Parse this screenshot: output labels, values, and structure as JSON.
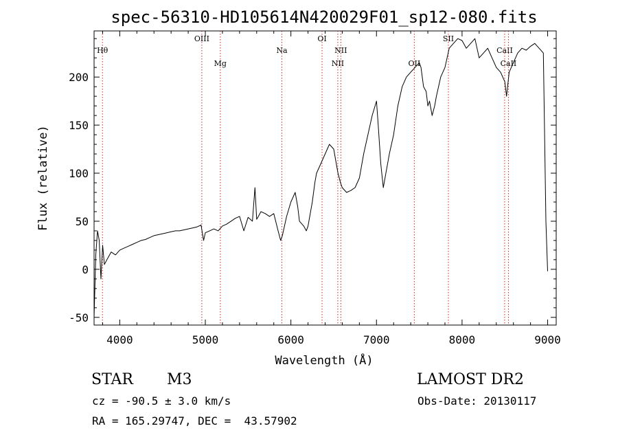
{
  "chart_data": {
    "type": "line",
    "title": "spec-56310-HD105614N420029F01_sp12-080.fits",
    "xlabel": "Wavelength (Å)",
    "ylabel": "Flux (relative)",
    "xlim": [
      3700,
      9100
    ],
    "ylim": [
      -58,
      248
    ],
    "xticks": [
      4000,
      5000,
      6000,
      7000,
      8000,
      9000
    ],
    "yticks": [
      -50,
      0,
      50,
      100,
      150,
      200
    ],
    "grid": false,
    "line_color": "#000000",
    "marker_color": "#cc2222",
    "lines": [
      {
        "label": "Hθ",
        "x": 3798,
        "row": 1
      },
      {
        "label": "OIII",
        "x": 4959,
        "row": 0
      },
      {
        "label": "Mg",
        "x": 5175,
        "row": 2
      },
      {
        "label": "Na",
        "x": 5894,
        "row": 1
      },
      {
        "label": "OI",
        "x": 6364,
        "row": 0
      },
      {
        "label": "NII",
        "x": 6548,
        "row": 2
      },
      {
        "label": "NII",
        "x": 6583,
        "row": 1
      },
      {
        "label": "OII",
        "x": 7442,
        "row": 2
      },
      {
        "label": "SII",
        "x": 7840,
        "row": 0
      },
      {
        "label": "CaII",
        "x": 8498,
        "row": 1
      },
      {
        "label": "CaII",
        "x": 8542,
        "row": 2
      }
    ],
    "series": [
      {
        "x": [
          3700,
          3720,
          3740,
          3760,
          3780,
          3800,
          3820,
          3850,
          3900,
          3950,
          4000,
          4050,
          4100,
          4150,
          4200,
          4250,
          4300,
          4350,
          4400,
          4450,
          4500,
          4550,
          4600,
          4650,
          4700,
          4750,
          4800,
          4850,
          4900,
          4950,
          4980,
          5000,
          5050,
          5100,
          5150,
          5200,
          5250,
          5300,
          5350,
          5400,
          5450,
          5500,
          5550,
          5580,
          5600,
          5620,
          5650,
          5700,
          5750,
          5800,
          5850,
          5880,
          5900,
          5950,
          6000,
          6050,
          6080,
          6100,
          6150,
          6180,
          6200,
          6250,
          6280,
          6300,
          6350,
          6400,
          6450,
          6500,
          6530,
          6550,
          6580,
          6600,
          6650,
          6700,
          6750,
          6800,
          6850,
          6900,
          6950,
          7000,
          7020,
          7050,
          7080,
          7100,
          7130,
          7150,
          7200,
          7250,
          7300,
          7350,
          7400,
          7450,
          7500,
          7520,
          7550,
          7580,
          7600,
          7620,
          7650,
          7680,
          7700,
          7750,
          7800,
          7850,
          7900,
          7950,
          8000,
          8050,
          8100,
          8150,
          8200,
          8250,
          8300,
          8350,
          8400,
          8450,
          8500,
          8520,
          8550,
          8600,
          8650,
          8700,
          8750,
          8800,
          8850,
          8900,
          8950,
          8980,
          9000
        ],
        "y": [
          -50,
          15,
          40,
          30,
          -10,
          25,
          5,
          10,
          18,
          15,
          20,
          22,
          24,
          26,
          28,
          30,
          31,
          33,
          35,
          36,
          37,
          38,
          39,
          40,
          40,
          41,
          42,
          43,
          44,
          46,
          30,
          38,
          40,
          42,
          40,
          45,
          47,
          50,
          53,
          55,
          40,
          54,
          50,
          85,
          52,
          55,
          60,
          58,
          55,
          58,
          40,
          30,
          35,
          55,
          70,
          80,
          65,
          50,
          45,
          40,
          45,
          70,
          90,
          100,
          110,
          120,
          130,
          125,
          110,
          100,
          90,
          85,
          80,
          82,
          85,
          95,
          120,
          140,
          160,
          175,
          150,
          110,
          85,
          95,
          110,
          120,
          140,
          170,
          190,
          200,
          205,
          210,
          215,
          210,
          190,
          185,
          170,
          175,
          160,
          170,
          180,
          200,
          210,
          230,
          235,
          240,
          238,
          230,
          235,
          240,
          220,
          225,
          230,
          220,
          210,
          205,
          195,
          180,
          205,
          215,
          225,
          230,
          228,
          232,
          235,
          230,
          225,
          50,
          -2
        ]
      }
    ]
  },
  "info": {
    "class": "STAR",
    "subclass": "M3",
    "survey": "LAMOST DR2",
    "redshift": "cz = -90.5 ± 3.0 km/s",
    "obs_date": "Obs-Date: 20130117",
    "coords": "RA = 165.29747, DEC =  43.57902"
  }
}
